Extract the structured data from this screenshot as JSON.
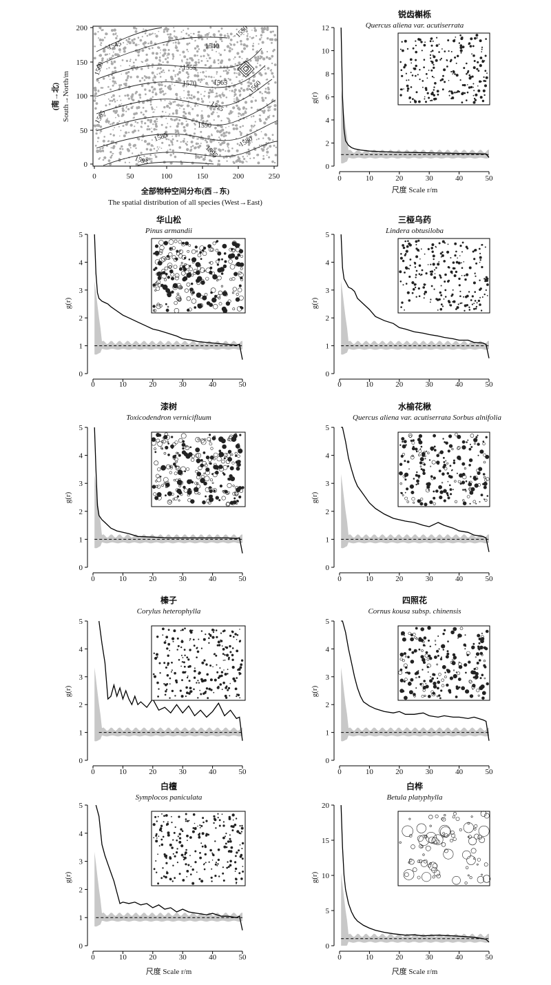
{
  "map": {
    "xlabel_cn": "全部物种空间分布(西→东)",
    "xlabel_en": "The spatial distribution of all species (West→East)",
    "ylabel_cn": "(南→北)",
    "ylabel_en": "South→North/m",
    "xticks": [
      "0",
      "50",
      "100",
      "150",
      "200",
      "250"
    ],
    "yticks": [
      "0",
      "50",
      "100",
      "150",
      "200"
    ],
    "contours": [
      "1540",
      "1545",
      "1550",
      "1555",
      "1560",
      "1560",
      "1565",
      "1565",
      "1570",
      "1575",
      "1580",
      "1585",
      "1590",
      "1595",
      "1595"
    ]
  },
  "common": {
    "xlabel": "尺度 Scale r/m",
    "ylabel": "g(r)",
    "xticks": [
      "0",
      "10",
      "20",
      "30",
      "40",
      "50"
    ]
  },
  "chart_data": [
    {
      "type": "line",
      "title_cn": "锐齿槲栎",
      "title_latin": "Quercus aliena var. acutiserrata",
      "xlabel": "尺度 Scale r/m",
      "ylabel": "g(r)",
      "xlim": [
        0,
        50
      ],
      "ylim": [
        0,
        12
      ],
      "yticks": [
        "0",
        "2",
        "4",
        "6",
        "8",
        "10",
        "12"
      ],
      "x": [
        0.5,
        1,
        1.5,
        2,
        3,
        4,
        5,
        7,
        10,
        15,
        20,
        25,
        30,
        35,
        40,
        45,
        49,
        50
      ],
      "series": [
        {
          "values": [
            12,
            6,
            3.2,
            2.2,
            1.8,
            1.6,
            1.5,
            1.4,
            1.3,
            1.25,
            1.2,
            1.18,
            1.15,
            1.12,
            1.1,
            1.08,
            1.05,
            0.75
          ]
        },
        {
          "values": [
            1,
            1,
            1,
            1,
            1,
            1,
            1,
            1,
            1,
            1,
            1,
            1,
            1,
            1,
            1,
            1,
            1,
            1
          ]
        }
      ]
    },
    {
      "type": "line",
      "title_cn": "华山松",
      "title_latin": "Pinus armandii",
      "xlabel": "",
      "ylabel": "g(r)",
      "xlim": [
        0,
        50
      ],
      "ylim": [
        0,
        5
      ],
      "yticks": [
        "0",
        "1",
        "2",
        "3",
        "4",
        "5"
      ],
      "x": [
        0.5,
        1,
        1.5,
        2,
        3,
        4,
        5,
        6,
        8,
        10,
        12,
        15,
        18,
        20,
        22,
        25,
        28,
        30,
        33,
        35,
        40,
        45,
        48,
        49,
        50
      ],
      "series": [
        {
          "values": [
            5.2,
            3.6,
            2.9,
            2.7,
            2.6,
            2.55,
            2.5,
            2.4,
            2.25,
            2.1,
            2.0,
            1.85,
            1.7,
            1.6,
            1.55,
            1.45,
            1.35,
            1.25,
            1.2,
            1.15,
            1.1,
            1.05,
            1.02,
            1.05,
            0.5
          ]
        },
        {
          "values": [
            1,
            1,
            1,
            1,
            1,
            1,
            1,
            1,
            1,
            1,
            1,
            1,
            1,
            1,
            1,
            1,
            1,
            1,
            1,
            1,
            1,
            1,
            1,
            1,
            1
          ]
        }
      ]
    },
    {
      "type": "line",
      "title_cn": "三桠乌药",
      "title_latin": "Lindera obtusiloba",
      "xlabel": "",
      "ylabel": "g(r)",
      "xlim": [
        0,
        50
      ],
      "ylim": [
        0,
        5
      ],
      "yticks": [
        "0",
        "1",
        "2",
        "3",
        "4",
        "5"
      ],
      "x": [
        0.5,
        1,
        1.5,
        2,
        3,
        4,
        5,
        6,
        8,
        10,
        12,
        15,
        18,
        20,
        22,
        25,
        28,
        30,
        33,
        35,
        38,
        40,
        43,
        45,
        48,
        49,
        50
      ],
      "series": [
        {
          "values": [
            5.2,
            3.8,
            3.4,
            3.3,
            3.1,
            3.05,
            2.95,
            2.7,
            2.5,
            2.3,
            2.05,
            1.9,
            1.8,
            1.65,
            1.6,
            1.5,
            1.45,
            1.4,
            1.35,
            1.3,
            1.25,
            1.2,
            1.2,
            1.12,
            1.1,
            1.05,
            0.55
          ]
        },
        {
          "values": [
            1,
            1,
            1,
            1,
            1,
            1,
            1,
            1,
            1,
            1,
            1,
            1,
            1,
            1,
            1,
            1,
            1,
            1,
            1,
            1,
            1,
            1,
            1,
            1,
            1,
            1,
            1
          ]
        }
      ]
    },
    {
      "type": "line",
      "title_cn": "漆树",
      "title_latin": "Toxicodendron vernicifluum",
      "xlabel": "",
      "ylabel": "g(r)",
      "xlim": [
        0,
        50
      ],
      "ylim": [
        0,
        5
      ],
      "yticks": [
        "0",
        "1",
        "2",
        "3",
        "4",
        "5"
      ],
      "x": [
        0.5,
        1,
        1.5,
        2,
        3,
        4,
        5,
        6,
        8,
        10,
        12,
        15,
        20,
        25,
        30,
        35,
        40,
        45,
        48,
        49,
        50
      ],
      "series": [
        {
          "values": [
            5.2,
            3.5,
            2.2,
            1.85,
            1.7,
            1.6,
            1.5,
            1.4,
            1.3,
            1.25,
            1.2,
            1.1,
            1.08,
            1.05,
            1.05,
            1.05,
            1.05,
            1.05,
            1.03,
            1.05,
            0.5
          ]
        },
        {
          "values": [
            1,
            1,
            1,
            1,
            1,
            1,
            1,
            1,
            1,
            1,
            1,
            1,
            1,
            1,
            1,
            1,
            1,
            1,
            1,
            1,
            1
          ]
        }
      ]
    },
    {
      "type": "line",
      "title_cn": "水榆花楸",
      "title_latin": "Quercus aliena var. acutiserrata Sorbus alnifolia",
      "xlabel": "",
      "ylabel": "g(r)",
      "xlim": [
        0,
        50
      ],
      "ylim": [
        0,
        5
      ],
      "yticks": [
        "0",
        "1",
        "2",
        "3",
        "4",
        "5"
      ],
      "x": [
        0.5,
        1,
        2,
        3,
        4,
        5,
        6,
        8,
        10,
        12,
        15,
        18,
        20,
        22,
        25,
        28,
        30,
        33,
        35,
        38,
        40,
        43,
        45,
        48,
        49,
        50
      ],
      "series": [
        {
          "values": [
            5.2,
            5.0,
            4.5,
            3.9,
            3.5,
            3.15,
            2.9,
            2.6,
            2.3,
            2.1,
            1.9,
            1.75,
            1.7,
            1.65,
            1.6,
            1.5,
            1.45,
            1.6,
            1.5,
            1.4,
            1.3,
            1.25,
            1.15,
            1.1,
            1.05,
            0.55
          ]
        },
        {
          "values": [
            1,
            1,
            1,
            1,
            1,
            1,
            1,
            1,
            1,
            1,
            1,
            1,
            1,
            1,
            1,
            1,
            1,
            1,
            1,
            1,
            1,
            1,
            1,
            1,
            1,
            1
          ]
        }
      ]
    },
    {
      "type": "line",
      "title_cn": "榛子",
      "title_latin": "Corylus heterophylla",
      "xlabel": "",
      "ylabel": "g(r)",
      "xlim": [
        0,
        50
      ],
      "ylim": [
        0,
        5
      ],
      "yticks": [
        "0",
        "1",
        "2",
        "3",
        "4",
        "5"
      ],
      "x": [
        2,
        3,
        4,
        5,
        6,
        7,
        8,
        9,
        10,
        11,
        12,
        13,
        14,
        15,
        16,
        18,
        20,
        22,
        24,
        26,
        28,
        30,
        32,
        34,
        36,
        38,
        40,
        42,
        44,
        46,
        48,
        49,
        50
      ],
      "series": [
        {
          "values": [
            5.2,
            4.2,
            3.5,
            2.2,
            2.3,
            2.7,
            2.3,
            2.6,
            2.2,
            2.5,
            2.2,
            2.0,
            2.3,
            2.0,
            2.1,
            1.9,
            2.2,
            1.8,
            1.9,
            1.7,
            2.0,
            1.7,
            1.95,
            1.6,
            1.8,
            1.55,
            1.75,
            2.05,
            1.6,
            1.8,
            1.5,
            1.55,
            0.7
          ]
        },
        {
          "values": [
            1,
            1,
            1,
            1,
            1,
            1,
            1,
            1,
            1,
            1,
            1,
            1,
            1,
            1,
            1,
            1,
            1,
            1,
            1,
            1,
            1,
            1,
            1,
            1,
            1,
            1,
            1,
            1,
            1,
            1,
            1,
            1,
            1
          ]
        }
      ]
    },
    {
      "type": "line",
      "title_cn": "四照花",
      "title_latin": "Cornus kousa subsp. chinensis",
      "xlabel": "",
      "ylabel": "g(r)",
      "xlim": [
        0,
        50
      ],
      "ylim": [
        0,
        5
      ],
      "yticks": [
        "0",
        "1",
        "2",
        "3",
        "4",
        "5"
      ],
      "x": [
        0.5,
        1,
        2,
        3,
        4,
        5,
        6,
        7,
        8,
        10,
        12,
        15,
        18,
        20,
        22,
        25,
        28,
        30,
        33,
        35,
        38,
        40,
        43,
        45,
        48,
        49,
        50
      ],
      "series": [
        {
          "values": [
            5.2,
            5.0,
            4.6,
            4.0,
            3.5,
            3.0,
            2.6,
            2.3,
            2.1,
            1.95,
            1.85,
            1.75,
            1.7,
            1.75,
            1.65,
            1.65,
            1.7,
            1.6,
            1.55,
            1.6,
            1.55,
            1.55,
            1.5,
            1.55,
            1.45,
            1.4,
            0.7
          ]
        },
        {
          "values": [
            1,
            1,
            1,
            1,
            1,
            1,
            1,
            1,
            1,
            1,
            1,
            1,
            1,
            1,
            1,
            1,
            1,
            1,
            1,
            1,
            1,
            1,
            1,
            1,
            1,
            1,
            1
          ]
        }
      ]
    },
    {
      "type": "line",
      "title_cn": "白檀",
      "title_latin": "Symplocos paniculata",
      "xlabel": "尺度 Scale r/m",
      "ylabel": "g(r)",
      "xlim": [
        0,
        50
      ],
      "ylim": [
        0,
        5
      ],
      "yticks": [
        "0",
        "1",
        "2",
        "3",
        "4",
        "5"
      ],
      "x": [
        1,
        2,
        3,
        4,
        5,
        6,
        7,
        8,
        9,
        10,
        12,
        14,
        16,
        18,
        20,
        22,
        24,
        26,
        28,
        30,
        32,
        35,
        38,
        40,
        43,
        45,
        48,
        49,
        50
      ],
      "series": [
        {
          "values": [
            5.2,
            4.6,
            3.6,
            3.2,
            2.9,
            2.6,
            2.3,
            1.9,
            1.5,
            1.55,
            1.5,
            1.55,
            1.45,
            1.5,
            1.35,
            1.45,
            1.3,
            1.35,
            1.2,
            1.3,
            1.2,
            1.15,
            1.1,
            1.15,
            1.05,
            1.05,
            1.0,
            1.05,
            0.55
          ]
        },
        {
          "values": [
            1,
            1,
            1,
            1,
            1,
            1,
            1,
            1,
            1,
            1,
            1,
            1,
            1,
            1,
            1,
            1,
            1,
            1,
            1,
            1,
            1,
            1,
            1,
            1,
            1,
            1,
            1,
            1,
            1
          ]
        }
      ]
    },
    {
      "type": "line",
      "title_cn": "白桦",
      "title_latin": "Betula platyphylla",
      "xlabel": "尺度 Scale r/m",
      "ylabel": "g(r)",
      "xlim": [
        0,
        50
      ],
      "ylim": [
        0,
        20
      ],
      "yticks": [
        "0",
        "5",
        "10",
        "15",
        "20"
      ],
      "x": [
        0.5,
        1,
        1.5,
        2,
        3,
        4,
        5,
        6,
        8,
        10,
        12,
        15,
        18,
        20,
        22,
        25,
        28,
        30,
        33,
        35,
        38,
        40,
        45,
        48,
        49,
        50
      ],
      "series": [
        {
          "values": [
            20,
            14,
            10,
            8,
            6,
            4.8,
            4,
            3.5,
            2.9,
            2.5,
            2.2,
            1.9,
            1.7,
            1.6,
            1.5,
            1.55,
            1.4,
            1.45,
            1.5,
            1.45,
            1.4,
            1.35,
            1.2,
            1.0,
            0.9,
            0.5
          ]
        },
        {
          "values": [
            1,
            1,
            1,
            1,
            1,
            1,
            1,
            1,
            1,
            1,
            1,
            1,
            1,
            1,
            1,
            1,
            1,
            1,
            1,
            1,
            1,
            1,
            1,
            1,
            1,
            1
          ]
        }
      ]
    }
  ]
}
